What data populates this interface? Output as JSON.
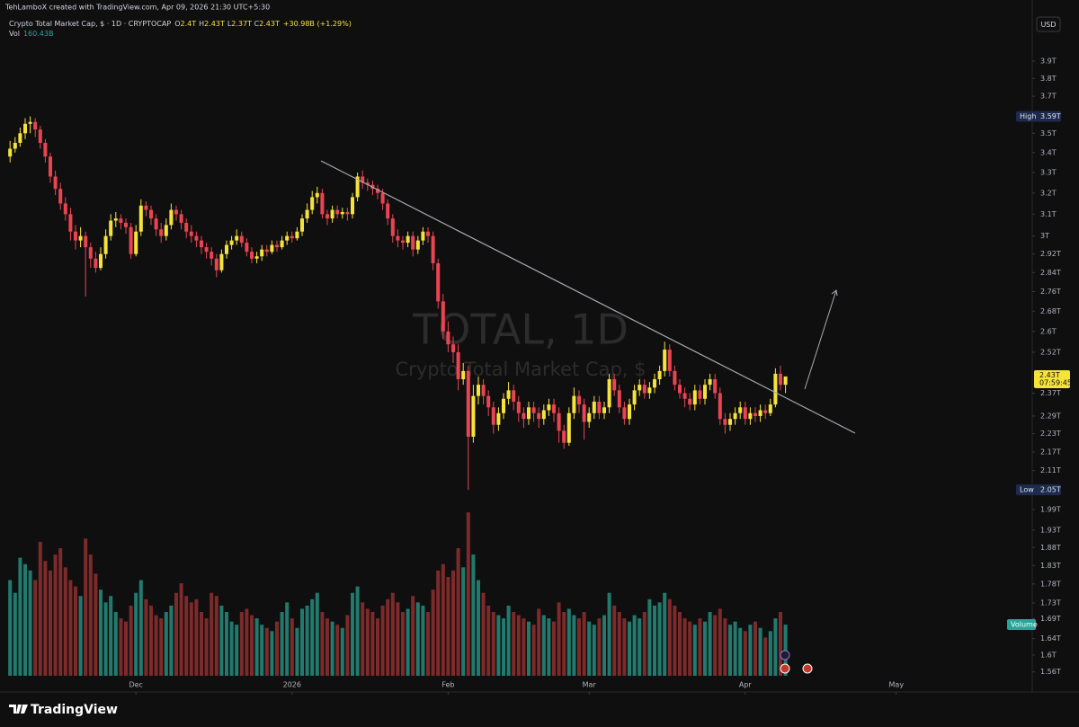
{
  "header": {
    "credit": "TehLamboX created with TradingView.com, Apr 09, 2026 21:30 UTC+5:30",
    "symbol": "Crypto Total Market Cap, $ · 1D · CRYPTOCAP",
    "ohlc_legend": [
      [
        "O",
        "2.4T"
      ],
      [
        "H",
        "2.43T"
      ],
      [
        "L",
        "2.37T"
      ],
      [
        "C",
        "2.43T"
      ]
    ],
    "change": "+30.98B (+1.29%)",
    "vol_label": "Vol",
    "vol_value": "160.43B"
  },
  "currency": "USD",
  "watermark": {
    "symbol": "TOTAL, 1D",
    "name": "Crypto Total Market Cap, $"
  },
  "branding": "TradingView",
  "chart_data": {
    "type": "candlestick",
    "up_color": "#f5e33b",
    "down_color": "#e84452",
    "log": true,
    "grid": false,
    "ylim": [
      1.524,
      4.161
    ],
    "yticks": [
      {
        "value": 3.9,
        "label": "3.9T"
      },
      {
        "value": 3.8,
        "label": "3.8T"
      },
      {
        "value": 3.7,
        "label": "3.7T"
      },
      {
        "value": 3.5,
        "label": "3.5T"
      },
      {
        "value": 3.4,
        "label": "3.4T"
      },
      {
        "value": 3.3,
        "label": "3.3T"
      },
      {
        "value": 3.2,
        "label": "3.2T"
      },
      {
        "value": 3.1,
        "label": "3.1T"
      },
      {
        "value": 3,
        "label": "3T"
      },
      {
        "value": 2.92,
        "label": "2.92T"
      },
      {
        "value": 2.84,
        "label": "2.84T"
      },
      {
        "value": 2.76,
        "label": "2.76T"
      },
      {
        "value": 2.68,
        "label": "2.68T"
      },
      {
        "value": 2.6,
        "label": "2.6T"
      },
      {
        "value": 2.52,
        "label": "2.52T"
      },
      {
        "value": 2.37,
        "label": "2.37T"
      },
      {
        "value": 2.29,
        "label": "2.29T"
      },
      {
        "value": 2.23,
        "label": "2.23T"
      },
      {
        "value": 2.17,
        "label": "2.17T"
      },
      {
        "value": 2.11,
        "label": "2.11T"
      },
      {
        "value": 1.99,
        "label": "1.99T"
      },
      {
        "value": 1.93,
        "label": "1.93T"
      },
      {
        "value": 1.88,
        "label": "1.88T"
      },
      {
        "value": 1.83,
        "label": "1.83T"
      },
      {
        "value": 1.78,
        "label": "1.78T"
      },
      {
        "value": 1.73,
        "label": "1.73T"
      },
      {
        "value": 1.69,
        "label": "1.69T"
      },
      {
        "value": 1.64,
        "label": "1.64T"
      },
      {
        "value": 1.6,
        "label": "1.6T"
      },
      {
        "value": 1.56,
        "label": "1.56T"
      }
    ],
    "xlim": [
      -2,
      203
    ],
    "xticks": [
      {
        "value": 25,
        "label": "Dec"
      },
      {
        "value": 56,
        "label": "2026"
      },
      {
        "value": 87,
        "label": "Feb"
      },
      {
        "value": 115,
        "label": "Mar"
      },
      {
        "value": 146,
        "label": "Apr"
      },
      {
        "value": 176,
        "label": "May"
      }
    ],
    "ohlc": [
      [
        3.38,
        3.46,
        3.35,
        3.42
      ],
      [
        3.42,
        3.48,
        3.4,
        3.45
      ],
      [
        3.45,
        3.53,
        3.43,
        3.5
      ],
      [
        3.5,
        3.58,
        3.47,
        3.55
      ],
      [
        3.55,
        3.59,
        3.5,
        3.56
      ],
      [
        3.56,
        3.58,
        3.48,
        3.52
      ],
      [
        3.52,
        3.54,
        3.42,
        3.45
      ],
      [
        3.45,
        3.47,
        3.35,
        3.38
      ],
      [
        3.38,
        3.4,
        3.25,
        3.28
      ],
      [
        3.28,
        3.31,
        3.19,
        3.22
      ],
      [
        3.22,
        3.25,
        3.12,
        3.15
      ],
      [
        3.15,
        3.18,
        3.07,
        3.1
      ],
      [
        3.1,
        3.13,
        2.98,
        3.02
      ],
      [
        3.02,
        3.05,
        2.94,
        2.98
      ],
      [
        2.98,
        3.04,
        2.95,
        3.0
      ],
      [
        3.0,
        3.02,
        2.74,
        2.95
      ],
      [
        2.95,
        2.97,
        2.86,
        2.9
      ],
      [
        2.9,
        2.93,
        2.84,
        2.86
      ],
      [
        2.86,
        2.95,
        2.85,
        2.92
      ],
      [
        2.92,
        3.03,
        2.9,
        3.0
      ],
      [
        3.0,
        3.1,
        2.98,
        3.07
      ],
      [
        3.07,
        3.11,
        3.04,
        3.08
      ],
      [
        3.08,
        3.1,
        3.03,
        3.06
      ],
      [
        3.06,
        3.08,
        3.01,
        3.04
      ],
      [
        3.04,
        3.06,
        2.9,
        2.92
      ],
      [
        2.92,
        3.05,
        2.91,
        3.02
      ],
      [
        3.02,
        3.17,
        3.0,
        3.14
      ],
      [
        3.14,
        3.16,
        3.09,
        3.12
      ],
      [
        3.12,
        3.14,
        3.05,
        3.08
      ],
      [
        3.08,
        3.1,
        3.0,
        3.03
      ],
      [
        3.03,
        3.06,
        2.97,
        3.0
      ],
      [
        3.0,
        3.08,
        2.98,
        3.05
      ],
      [
        3.05,
        3.15,
        3.03,
        3.12
      ],
      [
        3.12,
        3.14,
        3.07,
        3.1
      ],
      [
        3.1,
        3.12,
        3.03,
        3.06
      ],
      [
        3.06,
        3.08,
        2.99,
        3.02
      ],
      [
        3.02,
        3.05,
        2.97,
        3.0
      ],
      [
        3.0,
        3.02,
        2.95,
        2.98
      ],
      [
        2.98,
        3.0,
        2.92,
        2.95
      ],
      [
        2.95,
        2.97,
        2.9,
        2.93
      ],
      [
        2.93,
        2.95,
        2.87,
        2.9
      ],
      [
        2.9,
        2.92,
        2.82,
        2.85
      ],
      [
        2.85,
        2.94,
        2.84,
        2.92
      ],
      [
        2.92,
        2.98,
        2.9,
        2.96
      ],
      [
        2.96,
        3.0,
        2.94,
        2.98
      ],
      [
        2.98,
        3.03,
        2.96,
        3.0
      ],
      [
        3.0,
        3.02,
        2.95,
        2.97
      ],
      [
        2.97,
        2.99,
        2.91,
        2.93
      ],
      [
        2.93,
        2.95,
        2.88,
        2.9
      ],
      [
        2.9,
        2.93,
        2.88,
        2.91
      ],
      [
        2.91,
        2.96,
        2.89,
        2.94
      ],
      [
        2.94,
        2.96,
        2.91,
        2.93
      ],
      [
        2.93,
        2.98,
        2.92,
        2.96
      ],
      [
        2.96,
        2.98,
        2.93,
        2.95
      ],
      [
        2.95,
        3.0,
        2.94,
        2.98
      ],
      [
        2.98,
        3.02,
        2.96,
        3.0
      ],
      [
        3.0,
        3.02,
        2.97,
        2.99
      ],
      [
        2.99,
        3.04,
        2.98,
        3.02
      ],
      [
        3.02,
        3.1,
        3.0,
        3.08
      ],
      [
        3.08,
        3.15,
        3.06,
        3.12
      ],
      [
        3.12,
        3.21,
        3.1,
        3.18
      ],
      [
        3.18,
        3.23,
        3.15,
        3.2
      ],
      [
        3.2,
        3.22,
        3.08,
        3.1
      ],
      [
        3.1,
        3.12,
        3.05,
        3.08
      ],
      [
        3.08,
        3.14,
        3.06,
        3.12
      ],
      [
        3.12,
        3.14,
        3.08,
        3.1
      ],
      [
        3.1,
        3.13,
        3.08,
        3.11
      ],
      [
        3.11,
        3.13,
        3.07,
        3.1
      ],
      [
        3.1,
        3.2,
        3.08,
        3.18
      ],
      [
        3.18,
        3.3,
        3.16,
        3.28
      ],
      [
        3.28,
        3.31,
        3.22,
        3.25
      ],
      [
        3.25,
        3.27,
        3.21,
        3.24
      ],
      [
        3.24,
        3.26,
        3.19,
        3.22
      ],
      [
        3.22,
        3.24,
        3.17,
        3.2
      ],
      [
        3.2,
        3.22,
        3.12,
        3.15
      ],
      [
        3.15,
        3.17,
        3.05,
        3.08
      ],
      [
        3.08,
        3.1,
        2.97,
        3.0
      ],
      [
        3.0,
        3.03,
        2.95,
        2.98
      ],
      [
        2.98,
        3.0,
        2.94,
        2.97
      ],
      [
        2.97,
        3.02,
        2.95,
        3.0
      ],
      [
        3.0,
        3.02,
        2.91,
        2.94
      ],
      [
        2.94,
        3.0,
        2.92,
        2.98
      ],
      [
        2.98,
        3.04,
        2.96,
        3.02
      ],
      [
        3.02,
        3.04,
        2.97,
        3.0
      ],
      [
        3.0,
        3.02,
        2.85,
        2.88
      ],
      [
        2.88,
        2.9,
        2.69,
        2.72
      ],
      [
        2.72,
        2.75,
        2.57,
        2.6
      ],
      [
        2.6,
        2.64,
        2.52,
        2.55
      ],
      [
        2.55,
        2.58,
        2.48,
        2.52
      ],
      [
        2.52,
        2.55,
        2.38,
        2.42
      ],
      [
        2.42,
        2.48,
        2.4,
        2.45
      ],
      [
        2.45,
        2.47,
        2.05,
        2.22
      ],
      [
        2.22,
        2.4,
        2.2,
        2.36
      ],
      [
        2.36,
        2.43,
        2.33,
        2.4
      ],
      [
        2.4,
        2.42,
        2.33,
        2.36
      ],
      [
        2.36,
        2.38,
        2.29,
        2.32
      ],
      [
        2.32,
        2.34,
        2.23,
        2.26
      ],
      [
        2.26,
        2.32,
        2.24,
        2.3
      ],
      [
        2.3,
        2.37,
        2.28,
        2.35
      ],
      [
        2.35,
        2.41,
        2.33,
        2.38
      ],
      [
        2.38,
        2.4,
        2.31,
        2.34
      ],
      [
        2.34,
        2.36,
        2.27,
        2.3
      ],
      [
        2.3,
        2.32,
        2.25,
        2.28
      ],
      [
        2.28,
        2.34,
        2.26,
        2.32
      ],
      [
        2.32,
        2.34,
        2.27,
        2.3
      ],
      [
        2.3,
        2.32,
        2.25,
        2.28
      ],
      [
        2.28,
        2.33,
        2.26,
        2.31
      ],
      [
        2.31,
        2.35,
        2.29,
        2.33
      ],
      [
        2.33,
        2.35,
        2.27,
        2.3
      ],
      [
        2.3,
        2.32,
        2.2,
        2.24
      ],
      [
        2.24,
        2.26,
        2.18,
        2.2
      ],
      [
        2.2,
        2.32,
        2.19,
        2.3
      ],
      [
        2.3,
        2.39,
        2.28,
        2.36
      ],
      [
        2.36,
        2.38,
        2.3,
        2.33
      ],
      [
        2.33,
        2.35,
        2.21,
        2.27
      ],
      [
        2.27,
        2.32,
        2.25,
        2.3
      ],
      [
        2.3,
        2.36,
        2.28,
        2.34
      ],
      [
        2.34,
        2.36,
        2.28,
        2.3
      ],
      [
        2.3,
        2.34,
        2.28,
        2.32
      ],
      [
        2.32,
        2.44,
        2.3,
        2.42
      ],
      [
        2.42,
        2.44,
        2.36,
        2.38
      ],
      [
        2.38,
        2.4,
        2.3,
        2.32
      ],
      [
        2.32,
        2.34,
        2.26,
        2.28
      ],
      [
        2.28,
        2.35,
        2.26,
        2.33
      ],
      [
        2.33,
        2.4,
        2.31,
        2.38
      ],
      [
        2.38,
        2.42,
        2.36,
        2.4
      ],
      [
        2.4,
        2.42,
        2.35,
        2.37
      ],
      [
        2.37,
        2.41,
        2.35,
        2.39
      ],
      [
        2.39,
        2.44,
        2.37,
        2.42
      ],
      [
        2.42,
        2.47,
        2.4,
        2.45
      ],
      [
        2.45,
        2.56,
        2.43,
        2.53
      ],
      [
        2.53,
        2.55,
        2.43,
        2.45
      ],
      [
        2.45,
        2.47,
        2.38,
        2.4
      ],
      [
        2.4,
        2.42,
        2.35,
        2.37
      ],
      [
        2.37,
        2.39,
        2.32,
        2.35
      ],
      [
        2.35,
        2.37,
        2.31,
        2.33
      ],
      [
        2.33,
        2.4,
        2.31,
        2.38
      ],
      [
        2.38,
        2.4,
        2.33,
        2.35
      ],
      [
        2.35,
        2.42,
        2.33,
        2.4
      ],
      [
        2.4,
        2.44,
        2.38,
        2.42
      ],
      [
        2.42,
        2.44,
        2.35,
        2.37
      ],
      [
        2.37,
        2.39,
        2.26,
        2.28
      ],
      [
        2.28,
        2.3,
        2.23,
        2.26
      ],
      [
        2.26,
        2.3,
        2.24,
        2.28
      ],
      [
        2.28,
        2.32,
        2.26,
        2.3
      ],
      [
        2.3,
        2.34,
        2.28,
        2.32
      ],
      [
        2.32,
        2.34,
        2.26,
        2.28
      ],
      [
        2.28,
        2.32,
        2.26,
        2.3
      ],
      [
        2.3,
        2.32,
        2.27,
        2.29
      ],
      [
        2.29,
        2.33,
        2.27,
        2.31
      ],
      [
        2.31,
        2.33,
        2.28,
        2.3
      ],
      [
        2.3,
        2.35,
        2.29,
        2.33
      ],
      [
        2.33,
        2.46,
        2.32,
        2.44
      ],
      [
        2.44,
        2.47,
        2.38,
        2.4
      ],
      [
        2.4,
        2.43,
        2.37,
        2.43
      ]
    ],
    "high": {
      "label": "High",
      "value": 3.59,
      "value_label": "3.59T"
    },
    "low": {
      "label": "Low",
      "value": 2.05,
      "value_label": "2.05T"
    },
    "last": {
      "value": 2.43,
      "value_label": "2.43T",
      "countdown": "07:59:45"
    },
    "volume": {
      "label": "Volume",
      "ylim": [
        0,
        600
      ],
      "up_color": "#22796d",
      "down_color": "#7d2a2a",
      "values": [
        300,
        260,
        370,
        350,
        330,
        300,
        420,
        360,
        330,
        380,
        400,
        340,
        300,
        280,
        250,
        430,
        380,
        320,
        270,
        230,
        250,
        200,
        180,
        170,
        220,
        260,
        300,
        240,
        220,
        190,
        180,
        200,
        220,
        260,
        290,
        250,
        230,
        240,
        200,
        180,
        260,
        250,
        220,
        200,
        170,
        160,
        200,
        210,
        190,
        180,
        160,
        150,
        140,
        170,
        200,
        230,
        180,
        150,
        210,
        220,
        240,
        260,
        200,
        180,
        170,
        160,
        150,
        190,
        260,
        280,
        230,
        210,
        200,
        180,
        220,
        240,
        260,
        230,
        200,
        210,
        250,
        230,
        220,
        200,
        270,
        330,
        350,
        310,
        330,
        400,
        340,
        512,
        380,
        300,
        260,
        220,
        200,
        190,
        180,
        220,
        200,
        190,
        180,
        170,
        160,
        210,
        190,
        180,
        170,
        230,
        200,
        210,
        190,
        180,
        200,
        170,
        160,
        180,
        190,
        260,
        220,
        200,
        180,
        170,
        190,
        180,
        200,
        240,
        220,
        230,
        260,
        240,
        220,
        200,
        180,
        170,
        160,
        180,
        170,
        200,
        190,
        210,
        180,
        160,
        170,
        150,
        140,
        160,
        170,
        150,
        120,
        140,
        180,
        200,
        160.43
      ]
    }
  }
}
